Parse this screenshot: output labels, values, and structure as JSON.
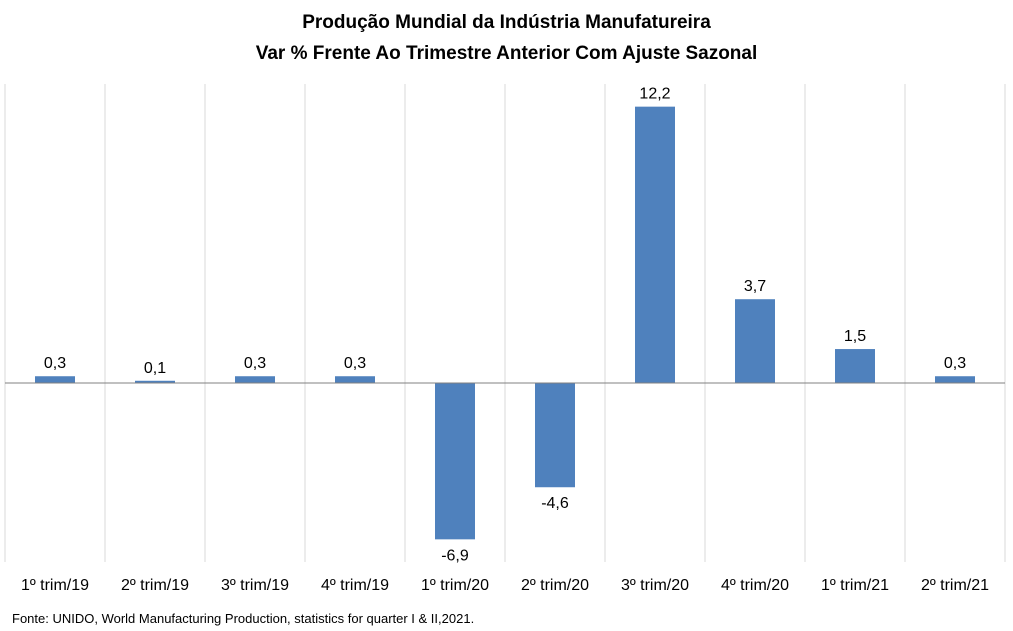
{
  "chart_data": {
    "type": "bar",
    "title": "Produção Mundial da Indústria Manufatureira",
    "subtitle": "Var % Frente Ao Trimestre Anterior Com Ajuste Sazonal",
    "categories": [
      "1º trim/19",
      "2º trim/19",
      "3º trim/19",
      "4º trim/19",
      "1º trim/20",
      "2º trim/20",
      "3º trim/20",
      "4º trim/20",
      "1º trim/21",
      "2º trim/21"
    ],
    "values": [
      0.3,
      0.1,
      0.3,
      0.3,
      -6.9,
      -4.6,
      12.2,
      3.7,
      1.5,
      0.3
    ],
    "data_labels": [
      "0,3",
      "0,1",
      "0,3",
      "0,3",
      "-6,9",
      "-4,6",
      "12,2",
      "3,7",
      "1,5",
      "0,3"
    ],
    "ylim": [
      -7.9,
      13.2
    ],
    "grid": "vertical separators between categories",
    "legend": "none",
    "bar_color": "#4f81bd",
    "source": "Fonte: UNIDO, World Manufacturing Production,  statistics for quarter  I & II,2021."
  }
}
